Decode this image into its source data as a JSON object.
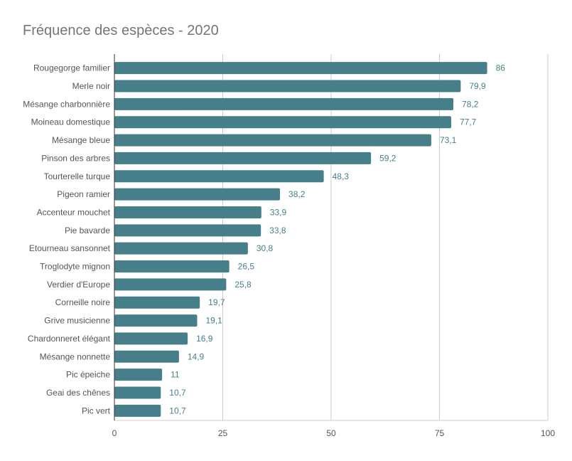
{
  "chart_data": {
    "type": "bar",
    "orientation": "horizontal",
    "title": "Fréquence des espèces - 2020",
    "xlabel": "",
    "ylabel": "",
    "xlim": [
      0,
      100
    ],
    "x_ticks": [
      "0",
      "25",
      "50",
      "75",
      "100"
    ],
    "x_tick_values": [
      0,
      25,
      50,
      75,
      100
    ],
    "grid": true,
    "legend": "none",
    "bar_color": "#467f8a",
    "label_color": "#467f8a",
    "categories": [
      "Rougegorge familier",
      "Merle noir",
      "Mésange charbonnière",
      "Moineau domestique",
      "Mésange bleue",
      "Pinson des arbres",
      "Tourterelle turque",
      "Pigeon ramier",
      "Accenteur mouchet",
      "Pie bavarde",
      "Etourneau sansonnet",
      "Troglodyte mignon",
      "Verdier d'Europe",
      "Corneille noire",
      "Grive musicienne",
      "Chardonneret élégant",
      "Mésange nonnette",
      "Pic épeiche",
      "Geai des chênes",
      "Pic vert"
    ],
    "values": [
      86,
      79.9,
      78.2,
      77.7,
      73.1,
      59.2,
      48.3,
      38.2,
      33.9,
      33.8,
      30.8,
      26.5,
      25.8,
      19.7,
      19.1,
      16.9,
      14.9,
      11,
      10.7,
      10.7
    ],
    "value_labels": [
      "86",
      "79,9",
      "78,2",
      "77,7",
      "73,1",
      "59,2",
      "48,3",
      "38,2",
      "33,9",
      "33,8",
      "30,8",
      "26,5",
      "25,8",
      "19,7",
      "19,1",
      "16,9",
      "14,9",
      "11",
      "10,7",
      "10,7"
    ]
  }
}
